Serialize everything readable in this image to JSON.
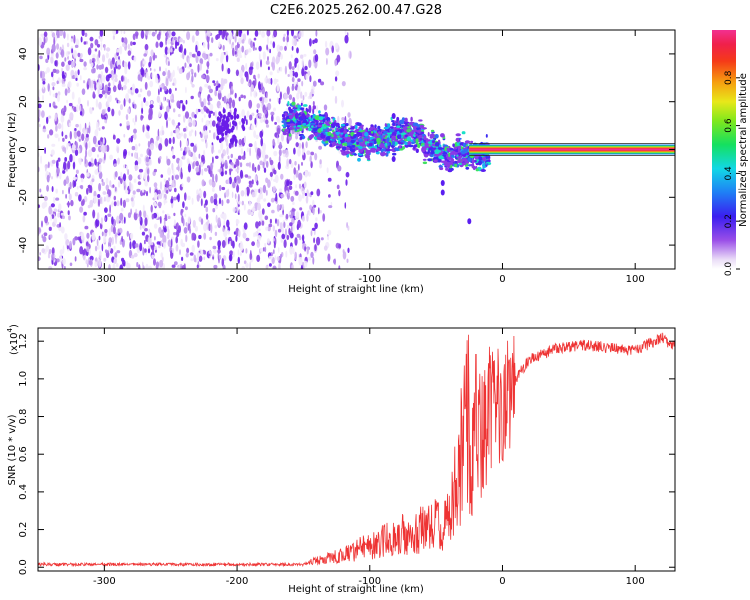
{
  "title": "C2E6.2025.262.00.47.G28",
  "chart_data": [
    {
      "type": "heatmap",
      "title": "C2E6.2025.262.00.47.G28",
      "xlabel": "Height of straight line (km)",
      "ylabel": "Frequency (Hz)",
      "xlim": [
        -350,
        130
      ],
      "ylim": [
        -50,
        50
      ],
      "xticks": [
        -300,
        -200,
        -100,
        0,
        100
      ],
      "xtick_labels": [
        "-300",
        "-200",
        "-100",
        "0",
        "100"
      ],
      "yticks": [
        -40,
        -20,
        0,
        20,
        40
      ],
      "ytick_labels": [
        "-40",
        "-20",
        "0",
        "20",
        "40"
      ],
      "colorbar": {
        "label": "Normalized spectral amplitude",
        "range": [
          0,
          1
        ],
        "ticks": [
          0.0,
          0.2,
          0.4,
          0.6,
          0.8
        ],
        "tick_labels": [
          "0.0",
          "0.2",
          "0.4",
          "0.6",
          "0.8"
        ],
        "colormap": "rainbow (white → violet → blue → cyan → green → yellow → orange → red → pink)"
      },
      "regions": [
        {
          "name": "noise",
          "x_range": [
            -350,
            -140
          ],
          "description": "scattered low-amplitude speckle across full band"
        },
        {
          "name": "carrier-trace",
          "x_range": [
            -165,
            -10
          ],
          "freq_center_hz": [
            10,
            0
          ],
          "spread_hz": 6
        },
        {
          "name": "locked-carrier",
          "x_range": [
            -10,
            130
          ],
          "freq_hz": 0,
          "amplitude": 1.0
        }
      ]
    },
    {
      "type": "line",
      "xlabel": "Height of straight line (km)",
      "ylabel": "SNR (10 * v/v)",
      "y_multiplier": "(x10",
      "y_multiplier_exp": "4",
      "y_multiplier_close": ")",
      "xlim": [
        -350,
        130
      ],
      "ylim": [
        -0.02,
        1.27
      ],
      "xticks": [
        -300,
        -200,
        -100,
        0,
        100
      ],
      "xtick_labels": [
        "-300",
        "-200",
        "-100",
        "0",
        "100"
      ],
      "yticks": [
        0.0,
        0.2,
        0.4,
        0.6,
        0.8,
        1.0,
        1.2
      ],
      "ytick_labels": [
        "0.0",
        "0.2",
        "0.4",
        "0.6",
        "0.8",
        "1.0",
        "1.2"
      ],
      "color": "#ee3333",
      "key_points": [
        {
          "x": -350,
          "y": 0.015
        },
        {
          "x": -150,
          "y": 0.015
        },
        {
          "x": -120,
          "y": 0.05
        },
        {
          "x": -80,
          "y": 0.12
        },
        {
          "x": -40,
          "y": 0.18
        },
        {
          "x": -25,
          "y": 0.6
        },
        {
          "x": -15,
          "y": 0.7
        },
        {
          "x": 0,
          "y": 0.9
        },
        {
          "x": 20,
          "y": 1.1
        },
        {
          "x": 40,
          "y": 1.16
        },
        {
          "x": 60,
          "y": 1.18
        },
        {
          "x": 100,
          "y": 1.15
        },
        {
          "x": 120,
          "y": 1.22
        },
        {
          "x": 130,
          "y": 1.17
        }
      ],
      "peak_spikes": [
        {
          "x": -10,
          "y": 1.17
        },
        {
          "x": -20,
          "y": 1.13
        },
        {
          "x": 5,
          "y": 1.1
        }
      ]
    }
  ]
}
